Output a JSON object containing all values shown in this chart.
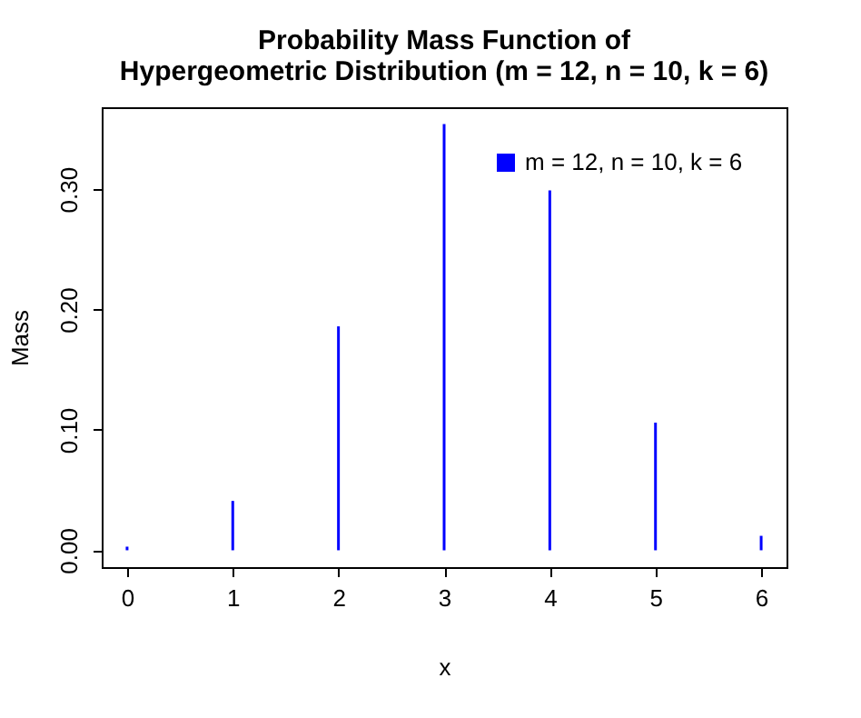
{
  "chart_data": {
    "type": "bar",
    "title": "Probability Mass Function of\nHypergeometric Distribution (m = 12, n = 10, k = 6)",
    "xlabel": "x",
    "ylabel": "Mass",
    "x": [
      0,
      1,
      2,
      3,
      4,
      5,
      6
    ],
    "series": [
      {
        "name": "m = 12, n = 10, k = 6",
        "color": "#0000ff",
        "values": [
          0.003,
          0.041,
          0.186,
          0.354,
          0.299,
          0.106,
          0.012
        ]
      }
    ],
    "xlim": [
      -0.24,
      6.24
    ],
    "xticks": [
      0,
      1,
      2,
      3,
      4,
      5,
      6
    ],
    "ylim": [
      -0.014,
      0.368
    ],
    "yticks": [
      {
        "value": 0,
        "label": "0.00"
      },
      {
        "value": 0.1,
        "label": "0.10"
      },
      {
        "value": 0.2,
        "label": "0.20"
      },
      {
        "value": 0.3,
        "label": "0.30"
      }
    ],
    "legend": "top right",
    "grid": false
  }
}
